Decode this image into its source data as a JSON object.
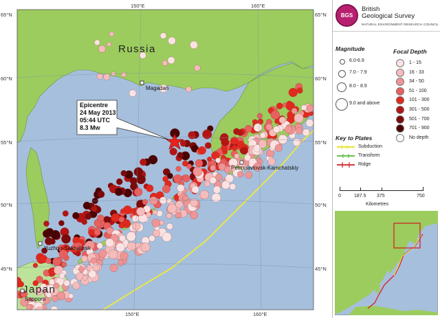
{
  "map": {
    "country_label": "Russia",
    "japan_label": "Japan",
    "lat_ticks_left": [
      "65°N",
      "60°N",
      "55°N",
      "50°N",
      "45°N"
    ],
    "lat_ticks_right": [
      "65°N",
      "60°N",
      "55°N",
      "50°N",
      "45°N"
    ],
    "lon_ticks_top": [
      "150°E",
      "160°E"
    ],
    "lon_ticks_bottom": [
      "150°E",
      "160°E"
    ],
    "places": [
      {
        "name": "Magadan"
      },
      {
        "name": "Petropavlovsk-Kamchatskiy"
      },
      {
        "name": "Yuzhno-Sakhalinsk"
      },
      {
        "name": "Sapporo"
      }
    ],
    "epicentre": {
      "lines": [
        "Epicentre",
        "24 May 2013",
        "05:44 UTC",
        "8.3 Mw"
      ],
      "marker_color": "#e8231d"
    },
    "colors": {
      "sea": "#a6bfdc",
      "land": "#9ccc5e",
      "japan_land": "#bde29a"
    }
  },
  "panel": {
    "org_line1": "British",
    "org_line2": "Geological Survey",
    "org_sub": "NATURAL ENVIRONMENT RESEARCH COUNCIL",
    "logo_text": "BGS",
    "magnitude": {
      "title": "Magnitude",
      "items": [
        {
          "label": "6.0-6.9",
          "size": 6
        },
        {
          "label": "7.0 - 7.9",
          "size": 9
        },
        {
          "label": "8.0 - 8.9",
          "size": 12
        },
        {
          "label": "9.0 and above",
          "size": 16
        }
      ]
    },
    "focal_depth": {
      "title": "Focal Depth",
      "items": [
        {
          "label": "1 - 15",
          "color": "#fbe3e3"
        },
        {
          "label": "16 - 33",
          "color": "#f6bcbc"
        },
        {
          "label": "34 - 50",
          "color": "#ef9595"
        },
        {
          "label": "51 - 100",
          "color": "#e8605e"
        },
        {
          "label": "101 - 300",
          "color": "#e2291e"
        },
        {
          "label": "301 - 500",
          "color": "#b31514"
        },
        {
          "label": "501 - 700",
          "color": "#7c0a0a"
        },
        {
          "label": "701 - 900",
          "color": "#4a0303"
        },
        {
          "label": "No depth",
          "color": "#ffffff"
        }
      ]
    },
    "plates": {
      "title": "Key to Plates",
      "items": [
        {
          "label": "Subduction",
          "color": "#e9e64a"
        },
        {
          "label": "Transform",
          "color": "#66c24a"
        },
        {
          "label": "Ridge",
          "color": "#d23a3a"
        }
      ]
    },
    "scale": {
      "ticks": [
        "0",
        "187.5",
        "375",
        "750"
      ],
      "unit": "Kilometres"
    }
  }
}
